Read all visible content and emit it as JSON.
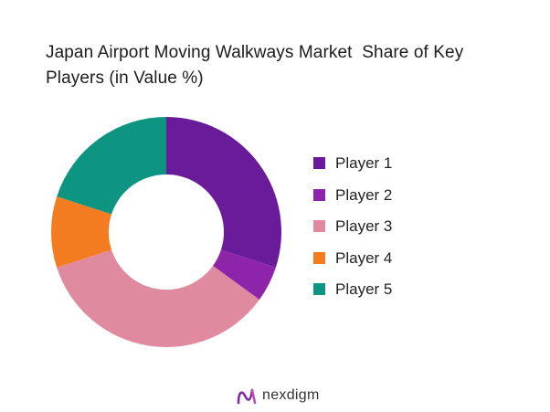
{
  "chart_data": {
    "type": "pie",
    "title": "Japan Airport Moving Walkways Market  Share of Key\nPlayers (in Value %)",
    "categories": [
      "Player 1",
      "Player 2",
      "Player 3",
      "Player 4",
      "Player 5"
    ],
    "values": [
      30,
      5,
      35,
      10,
      20
    ],
    "colors": [
      "#6a1b9a",
      "#8e24aa",
      "#e08aa0",
      "#f47c20",
      "#0e9582"
    ],
    "legend": "right",
    "donut": true
  },
  "brand": {
    "name": "nexdigm"
  }
}
